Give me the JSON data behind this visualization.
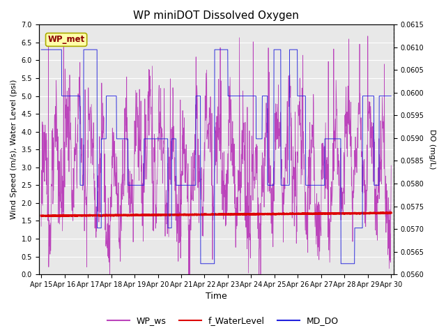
{
  "title": "WP miniDOT Dissolved Oxygen",
  "ylabel_left": "Wind Speed (m/s), Water Level (psi)",
  "ylabel_right": "DO (mg/L)",
  "xlabel": "Time",
  "ylim_left": [
    0.0,
    7.0
  ],
  "ylim_right": [
    0.056,
    0.0615
  ],
  "yticks_left": [
    0.0,
    0.5,
    1.0,
    1.5,
    2.0,
    2.5,
    3.0,
    3.5,
    4.0,
    4.5,
    5.0,
    5.5,
    6.0,
    6.5,
    7.0
  ],
  "yticks_right": [
    0.056,
    0.0565,
    0.057,
    0.0575,
    0.058,
    0.0585,
    0.059,
    0.0595,
    0.06,
    0.0605,
    0.061,
    0.0615
  ],
  "xtick_labels": [
    "Apr 15",
    "Apr 16",
    "Apr 17",
    "Apr 18",
    "Apr 19",
    "Apr 20",
    "Apr 21",
    "Apr 22",
    "Apr 23",
    "Apr 24",
    "Apr 25",
    "Apr 26",
    "Apr 27",
    "Apr 28",
    "Apr 29",
    "Apr 30"
  ],
  "wp_ws_color": "#BB44BB",
  "f_water_color": "#DD0000",
  "md_do_color": "#2222DD",
  "annotation_text": "WP_met",
  "annotation_color": "#8B0000",
  "annotation_bg": "#FFFFAA",
  "annotation_edge": "#AAAA00",
  "legend_labels": [
    "WP_ws",
    "f_WaterLevel",
    "MD_DO"
  ],
  "legend_colors": [
    "#BB44BB",
    "#DD0000",
    "#2222DD"
  ],
  "plot_bg": "#E8E8E8",
  "grid_color": "#FFFFFF",
  "title_fontsize": 11,
  "ylabel_fontsize": 8,
  "xlabel_fontsize": 9,
  "tick_fontsize": 7,
  "legend_fontsize": 9
}
